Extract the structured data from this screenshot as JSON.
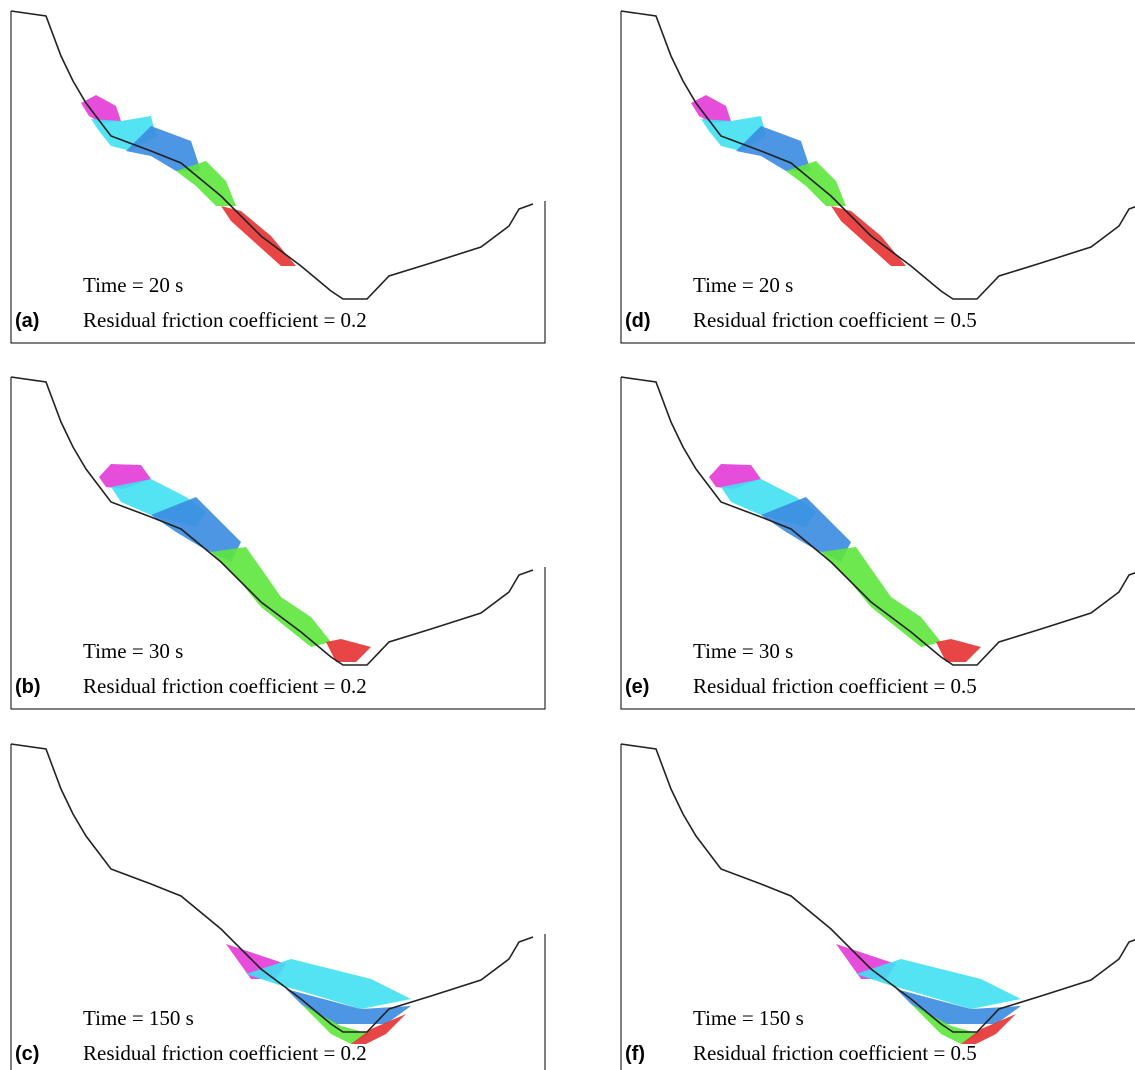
{
  "panels": [
    {
      "label": "(a)",
      "time": "Time = 20 s",
      "friction": "Residual friction coefficient = 0.2"
    },
    {
      "label": "(b)",
      "time": "Time = 30 s",
      "friction": "Residual friction coefficient = 0.2"
    },
    {
      "label": "(c)",
      "time": "Time = 150 s",
      "friction": "Residual friction coefficient = 0.2"
    },
    {
      "label": "(d)",
      "time": "Time = 20 s",
      "friction": "Residual friction coefficient = 0.5"
    },
    {
      "label": "(e)",
      "time": "Time = 30 s",
      "friction": "Residual friction coefficient = 0.5"
    },
    {
      "label": "(f)",
      "time": "Time = 150 s",
      "friction": "Residual friction coefficient = 0.5"
    }
  ]
}
